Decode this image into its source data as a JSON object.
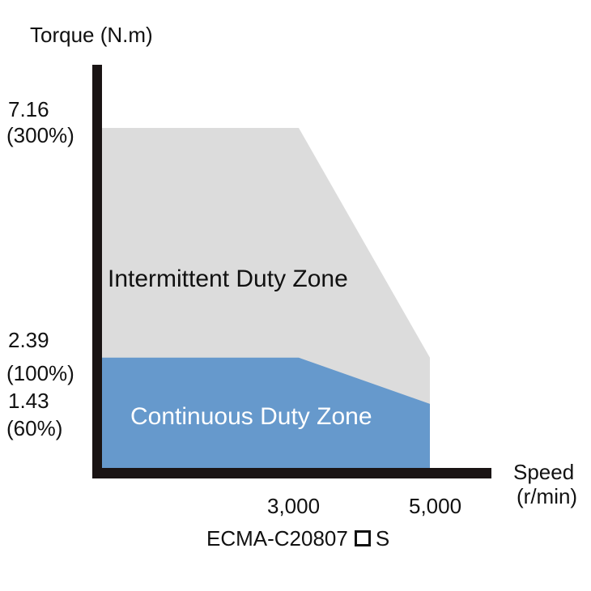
{
  "chart_data": {
    "type": "area",
    "ylabel": "Torque (N.m)",
    "xlabel": [
      "Speed",
      "(r/min)"
    ],
    "x_ticks": [
      {
        "value": 3000,
        "label": "3,000"
      },
      {
        "value": 5000,
        "label": "5,000"
      }
    ],
    "y_ticks": [
      {
        "value": 7.16,
        "label": "7.16",
        "sublabel": "(300%)"
      },
      {
        "value": 2.39,
        "label": "2.39",
        "sublabel": "(100%)"
      },
      {
        "value": 1.43,
        "label": "1.43",
        "sublabel": "(60%)"
      }
    ],
    "series": [
      {
        "name": "Intermittent Duty Zone",
        "color": "#dcdcdc",
        "text_color": "#111111",
        "x": [
          0,
          3000,
          5000
        ],
        "y": [
          7.16,
          7.16,
          2.39
        ]
      },
      {
        "name": "Continuous Duty Zone",
        "color": "#6699cc",
        "text_color": "#ffffff",
        "x": [
          0,
          3000,
          5000
        ],
        "y": [
          2.39,
          2.39,
          1.43
        ]
      }
    ],
    "xlim": [
      0,
      5000
    ],
    "ylim": [
      0,
      7.16
    ],
    "grid": false,
    "caption_prefix": "ECMA-C20807",
    "caption_suffix": "S",
    "caption_symbol": "square-placeholder"
  }
}
